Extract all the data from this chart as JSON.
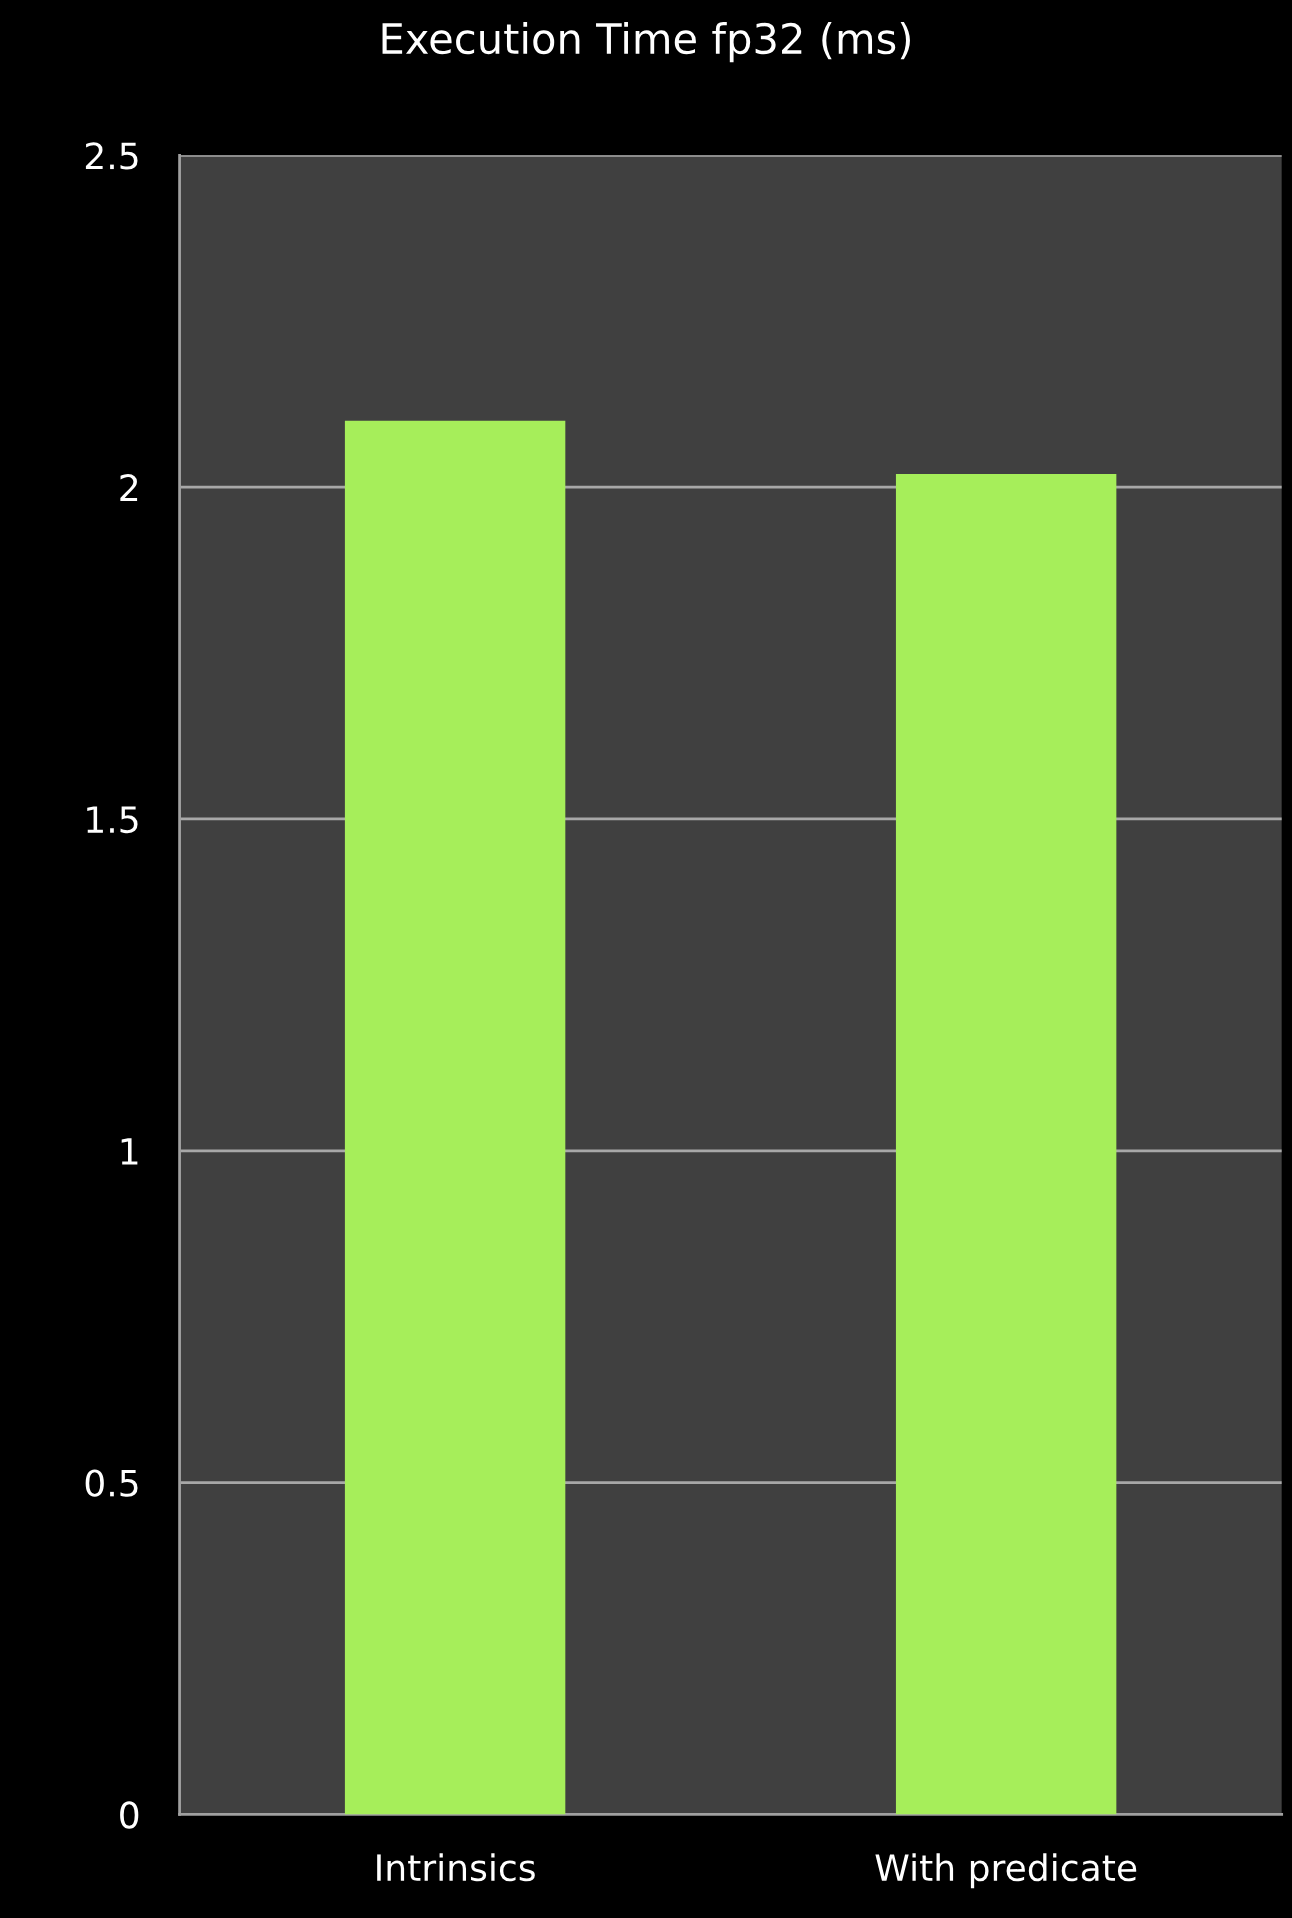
{
  "chart_data": {
    "type": "bar",
    "title": "Execution Time fp32 (ms)",
    "categories": [
      "Intrinsics",
      "With predicate"
    ],
    "values": [
      2.1,
      2.02
    ],
    "color": "#a6ee5a",
    "ylim": [
      0,
      2.5
    ],
    "yticks": [
      0,
      0.5,
      1,
      1.5,
      2,
      2.5
    ],
    "grid": "y"
  }
}
